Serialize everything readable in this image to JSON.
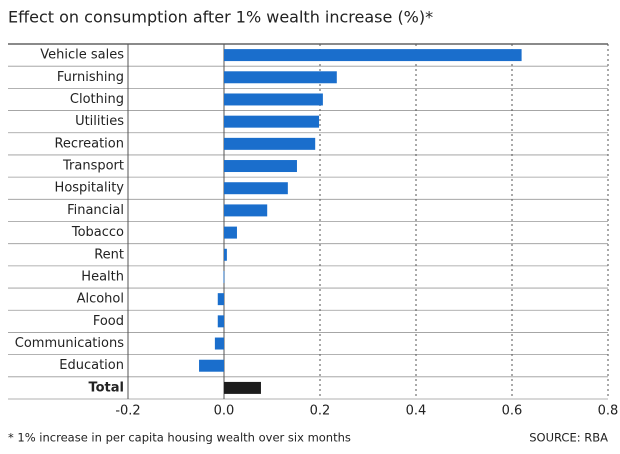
{
  "chart_data": {
    "type": "hbar",
    "title": "Effect on consumption after 1% wealth increase (%)*",
    "categories": [
      "Vehicle sales",
      "Furnishing",
      "Clothing",
      "Utilities",
      "Recreation",
      "Transport",
      "Hospitality",
      "Financial",
      "Tobacco",
      "Rent",
      "Health",
      "Alcohol",
      "Food",
      "Communications",
      "Education",
      "Total"
    ],
    "values": [
      0.62,
      0.235,
      0.206,
      0.198,
      0.19,
      0.152,
      0.133,
      0.09,
      0.027,
      0.006,
      -0.001,
      -0.013,
      -0.013,
      -0.019,
      -0.052,
      0.077
    ],
    "colors": [
      "#1a6ecc",
      "#1a6ecc",
      "#1a6ecc",
      "#1a6ecc",
      "#1a6ecc",
      "#1a6ecc",
      "#1a6ecc",
      "#1a6ecc",
      "#1a6ecc",
      "#1a6ecc",
      "#1a6ecc",
      "#1a6ecc",
      "#1a6ecc",
      "#1a6ecc",
      "#1a6ecc",
      "#1c1c1c"
    ],
    "xlim": [
      -0.2,
      0.8
    ],
    "xticks": [
      -0.2,
      {
        "value": 0,
        "label": "0.0"
      },
      0.2,
      0.4,
      0.6,
      0.8
    ],
    "grid": true,
    "footnote": "* 1% increase in per capita housing wealth over six months",
    "source": "SOURCE: RBA"
  }
}
